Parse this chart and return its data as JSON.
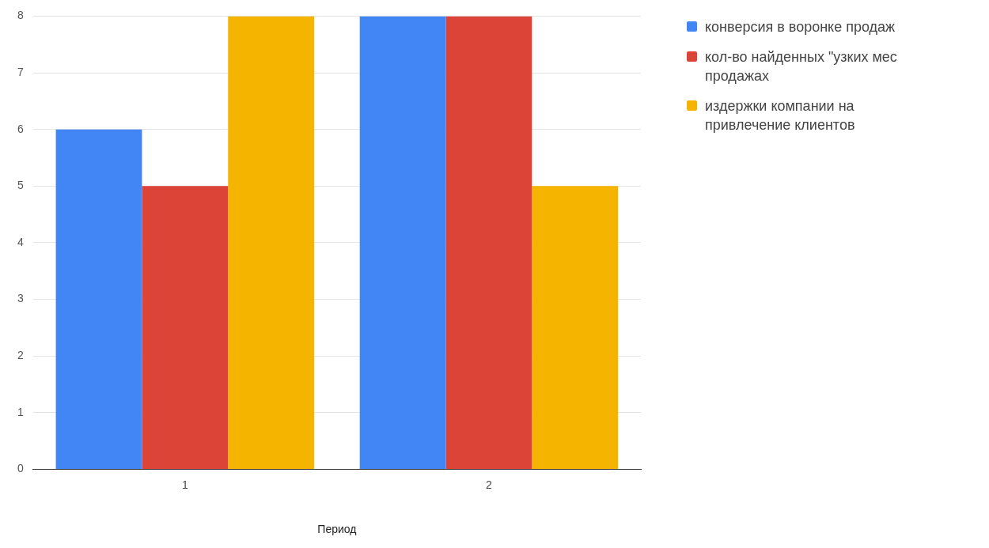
{
  "chart_data": {
    "type": "bar",
    "xlabel": "Период",
    "categories": [
      "1",
      "2"
    ],
    "series": [
      {
        "name": "конверсия в воронке продаж",
        "color": "#4285f4",
        "values": [
          6,
          8
        ]
      },
      {
        "name": "кол-во найденных \"узких мес продажах",
        "color": "#db4437",
        "values": [
          5,
          8
        ]
      },
      {
        "name": "издержки компании на привлечение клиентов",
        "color": "#f4b400",
        "values": [
          8,
          5
        ]
      }
    ],
    "ylim": [
      0,
      8
    ],
    "yticks": [
      0,
      1,
      2,
      3,
      4,
      5,
      6,
      7,
      8
    ],
    "grid": "y",
    "legend": "right"
  }
}
